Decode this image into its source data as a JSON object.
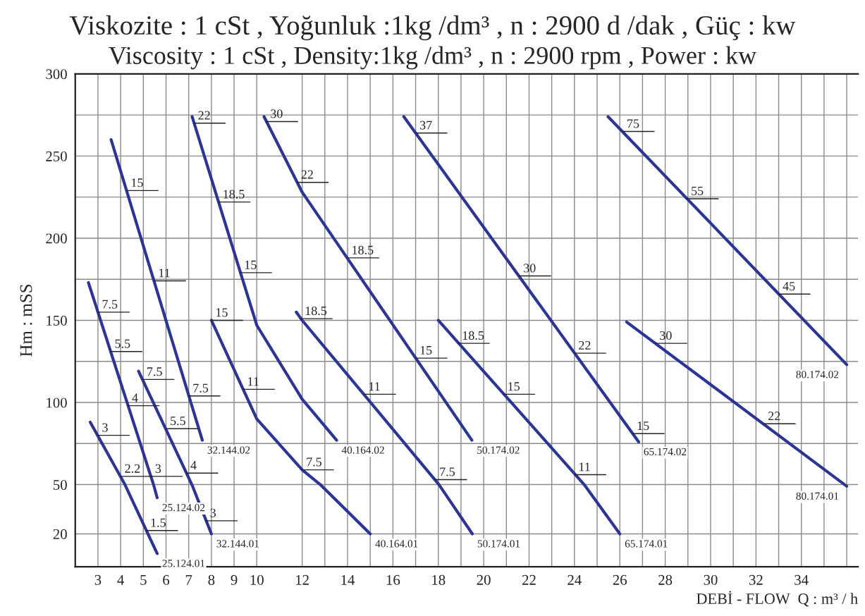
{
  "chart_data": {
    "type": "line",
    "title": "Viskozite : 1 cSt , Yoğunluk :1kg /dm³ , n : 2900 d /dak , Güç : kw",
    "subtitle": "Viscosity : 1 cSt , Density:1kg /dm³ , n : 2900 rpm , Power : kw",
    "xlabel": "DEBİ - FLOW  Q : m³ / h",
    "ylabel": "Hm : mSS",
    "xlim": [
      2,
      36.5
    ],
    "ylim": [
      0,
      300
    ],
    "xticks": [
      3,
      4,
      5,
      6,
      7,
      8,
      9,
      10,
      12,
      {
        "value": 13,
        "label": null
      },
      14,
      {
        "value": 15,
        "label": null
      },
      16,
      {
        "value": 17,
        "label": null
      },
      18,
      {
        "value": 19,
        "label": null
      },
      20,
      {
        "value": 21,
        "label": null
      },
      22,
      {
        "value": 23,
        "label": null
      },
      24,
      {
        "value": 25,
        "label": null
      },
      26,
      {
        "value": 27,
        "label": null
      },
      28,
      {
        "value": 29,
        "label": null
      },
      30,
      {
        "value": 31,
        "label": null
      },
      32,
      {
        "value": 33,
        "label": null
      },
      34,
      {
        "value": 35,
        "label": null
      },
      {
        "value": 36,
        "label": null
      }
    ],
    "yticks": [
      20,
      50,
      {
        "value": 75,
        "label": null
      },
      100,
      {
        "value": 125,
        "label": null
      },
      150,
      {
        "value": 175,
        "label": null
      },
      200,
      {
        "value": 225,
        "label": null
      },
      250,
      {
        "value": 275,
        "label": null
      },
      300
    ],
    "grid": true,
    "legend": false,
    "marker": "none",
    "line_style": "solid",
    "series": [
      {
        "name": "25.124.02",
        "color": "#2b3593",
        "x": [
          2.58,
          5.45,
          5.61
        ],
        "values": [
          173,
          50,
          42
        ]
      },
      {
        "name": "25.124.01",
        "color": "#2b3593",
        "x": [
          2.66,
          4.19,
          5.61
        ],
        "values": [
          88,
          50,
          8
        ]
      },
      {
        "name": "32.144.02",
        "color": "#2b3593",
        "x": [
          3.58,
          7.6
        ],
        "values": [
          260,
          77
        ]
      },
      {
        "name": "32.144.01",
        "color": "#2b3593",
        "x": [
          4.79,
          7.14,
          8
        ],
        "values": [
          119,
          50,
          20
        ]
      },
      {
        "name": "40.164.02",
        "color": "#2b3593",
        "x": [
          7.15,
          10,
          12,
          13.52
        ],
        "values": [
          274,
          147,
          102,
          77
        ]
      },
      {
        "name": "40.164.01",
        "color": "#2b3593",
        "x": [
          8,
          10,
          12,
          12.8,
          15
        ],
        "values": [
          150,
          90,
          59,
          50,
          20
        ]
      },
      {
        "name": "50.174.02",
        "color": "#2b3593",
        "x": [
          10.32,
          12,
          19.48
        ],
        "values": [
          274,
          228,
          77
        ]
      },
      {
        "name": "50.174.01",
        "color": "#2b3593",
        "x": [
          11.74,
          12,
          18.03,
          19.5
        ],
        "values": [
          155,
          150,
          50,
          20
        ]
      },
      {
        "name": "65.174.02",
        "color": "#2b3593",
        "x": [
          16.48,
          26.83
        ],
        "values": [
          274,
          76
        ]
      },
      {
        "name": "65.174.01",
        "color": "#2b3593",
        "x": [
          18,
          24.43,
          26
        ],
        "values": [
          150,
          50,
          20
        ]
      },
      {
        "name": "80.174.02",
        "color": "#2b3593",
        "x": [
          25.48,
          36
        ],
        "values": [
          274,
          123
        ]
      },
      {
        "name": "80.174.01",
        "color": "#2b3593",
        "x": [
          26.3,
          36
        ],
        "values": [
          149,
          49
        ]
      }
    ],
    "annotations": [
      {
        "text": "7.5",
        "x": 3.0,
        "y": 155
      },
      {
        "text": "5.5",
        "x": 3.56,
        "y": 131
      },
      {
        "text": "4",
        "x": 4.32,
        "y": 98
      },
      {
        "text": "3",
        "x": 5.34,
        "y": 55
      },
      {
        "text": "3",
        "x": 3.0,
        "y": 80
      },
      {
        "text": "2.2",
        "x": 4.0,
        "y": 55
      },
      {
        "text": "1.5",
        "x": 5.13,
        "y": 22
      },
      {
        "text": "15",
        "x": 4.27,
        "y": 229
      },
      {
        "text": "11",
        "x": 5.48,
        "y": 174
      },
      {
        "text": "7.5",
        "x": 7.0,
        "y": 104
      },
      {
        "text": "7.5",
        "x": 4.97,
        "y": 114
      },
      {
        "text": "5.5",
        "x": 6.0,
        "y": 84
      },
      {
        "text": "4",
        "x": 6.9,
        "y": 57
      },
      {
        "text": "3",
        "x": 7.76,
        "y": 28
      },
      {
        "text": "22",
        "x": 7.23,
        "y": 270
      },
      {
        "text": "18.5",
        "x": 8.32,
        "y": 222
      },
      {
        "text": "15",
        "x": 9.27,
        "y": 179
      },
      {
        "text": "15",
        "x": 8.0,
        "y": 150
      },
      {
        "text": "11",
        "x": 9.4,
        "y": 108
      },
      {
        "text": "7.5",
        "x": 12.0,
        "y": 59
      },
      {
        "text": "30",
        "x": 10.42,
        "y": 271
      },
      {
        "text": "22",
        "x": 11.77,
        "y": 234
      },
      {
        "text": "18.5",
        "x": 14.0,
        "y": 188
      },
      {
        "text": "15",
        "x": 17.0,
        "y": 127
      },
      {
        "text": "18.5",
        "x": 11.94,
        "y": 151
      },
      {
        "text": "11",
        "x": 14.74,
        "y": 105
      },
      {
        "text": "7.5",
        "x": 17.87,
        "y": 53
      },
      {
        "text": "37",
        "x": 17.0,
        "y": 264
      },
      {
        "text": "30",
        "x": 21.57,
        "y": 177
      },
      {
        "text": "22",
        "x": 24.0,
        "y": 130
      },
      {
        "text": "15",
        "x": 26.57,
        "y": 81
      },
      {
        "text": "18.5",
        "x": 18.87,
        "y": 136
      },
      {
        "text": "15",
        "x": 20.87,
        "y": 105
      },
      {
        "text": "11",
        "x": 24.0,
        "y": 56
      },
      {
        "text": "75",
        "x": 26.13,
        "y": 265
      },
      {
        "text": "55",
        "x": 28.96,
        "y": 224
      },
      {
        "text": "45",
        "x": 33.0,
        "y": 166
      },
      {
        "text": "30",
        "x": 27.57,
        "y": 136
      },
      {
        "text": "22",
        "x": 32.35,
        "y": 87
      }
    ]
  }
}
